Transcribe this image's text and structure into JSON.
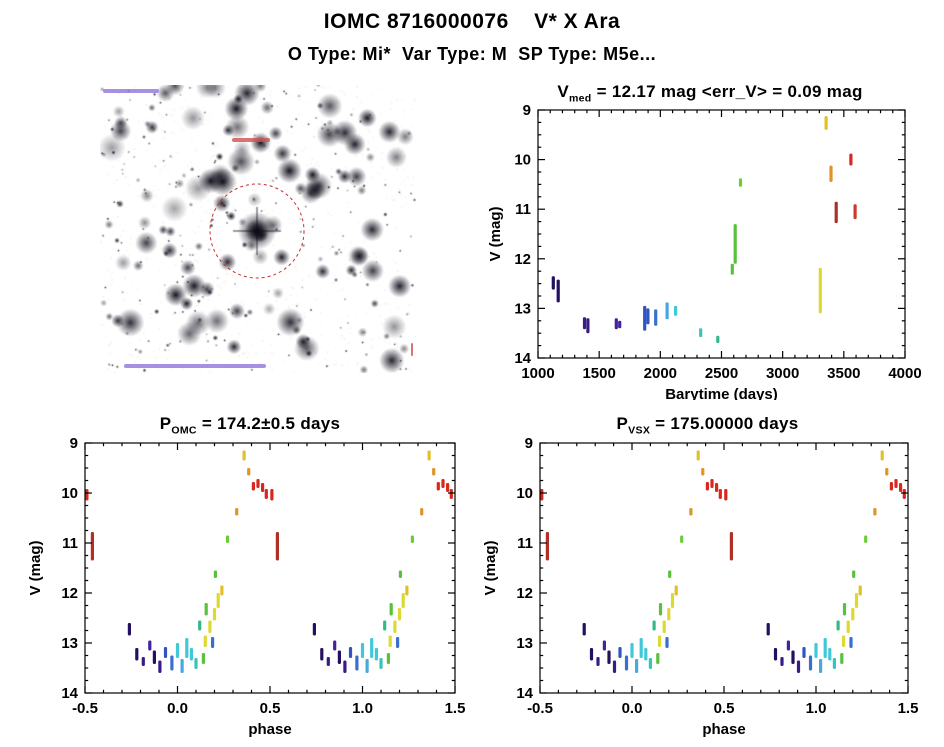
{
  "header": {
    "title": "IOMC 8716000076    V* X Ara",
    "subtitle": "O Type: Mi*  Var Type: M  SP Type: M5e..."
  },
  "starfield": {
    "marker_circle_color": "#c03030",
    "annotation_purple": "#8a6ad8",
    "annotation_red": "#d05050"
  },
  "chart_data": [
    {
      "id": "lightcurve",
      "type": "scatter",
      "title_pre": "V",
      "title_sub": "med",
      "title_post": " = 12.17 mag <err_V> = 0.09 mag",
      "xlabel": "Barytime (days)",
      "ylabel": "V (mag)",
      "xlim": [
        1000,
        4000
      ],
      "ylim": [
        9,
        14
      ],
      "y_inverted": true,
      "grid": false,
      "xticks": [
        1000,
        1500,
        2000,
        2500,
        3000,
        3500,
        4000
      ],
      "xtick_labels": [
        "1000",
        "1500",
        "2000",
        "2500",
        "3000",
        "3500",
        "4000"
      ],
      "yticks": [
        9,
        10,
        11,
        12,
        13,
        14
      ],
      "ytick_labels": [
        "9",
        "10",
        "11",
        "12",
        "13",
        "14"
      ],
      "xminor": 100,
      "yminor": 0.25,
      "clusters": [
        [
          1125,
          12.35,
          12.62,
          "#241060"
        ],
        [
          1165,
          12.42,
          12.88,
          "#241060"
        ],
        [
          1380,
          13.18,
          13.42,
          "#381b86"
        ],
        [
          1408,
          13.2,
          13.5,
          "#381b86"
        ],
        [
          1640,
          13.2,
          13.42,
          "#44229e"
        ],
        [
          1668,
          13.25,
          13.4,
          "#44229e"
        ],
        [
          1872,
          12.95,
          13.45,
          "#3054c0"
        ],
        [
          1898,
          13.0,
          13.32,
          "#3054c0"
        ],
        [
          1962,
          13.02,
          13.35,
          "#3a6fd0"
        ],
        [
          2055,
          12.88,
          13.22,
          "#49a8dd"
        ],
        [
          2125,
          12.95,
          13.15,
          "#40c8d8"
        ],
        [
          2330,
          13.4,
          13.58,
          "#38c4bc"
        ],
        [
          2470,
          13.55,
          13.7,
          "#34b88a"
        ],
        [
          2588,
          12.1,
          12.32,
          "#58c23c"
        ],
        [
          2612,
          11.3,
          12.1,
          "#58c23c"
        ],
        [
          2655,
          10.38,
          10.55,
          "#6ccc38"
        ],
        [
          3308,
          12.18,
          13.1,
          "#ded832"
        ],
        [
          3355,
          9.12,
          9.4,
          "#e2c028"
        ],
        [
          3395,
          10.12,
          10.45,
          "#e09428"
        ],
        [
          3438,
          10.85,
          11.28,
          "#a8322a"
        ],
        [
          3558,
          9.88,
          10.12,
          "#d8281e"
        ],
        [
          3592,
          10.9,
          11.2,
          "#cc3a2e"
        ]
      ]
    },
    {
      "id": "phase_omc",
      "type": "scatter",
      "title_pre": "P",
      "title_sub": "OMC",
      "title_post": " = 174.2±0.5 days",
      "xlabel": "phase",
      "ylabel": "V (mag)",
      "xlim": [
        -0.5,
        1.5
      ],
      "ylim": [
        9,
        14
      ],
      "y_inverted": true,
      "grid": false,
      "xticks": [
        -0.5,
        0.0,
        0.5,
        1.0,
        1.5
      ],
      "xtick_labels": [
        "-0.5",
        "0.0",
        "0.5",
        "1.0",
        "1.5"
      ],
      "yticks": [
        9,
        10,
        11,
        12,
        13,
        14
      ],
      "ytick_labels": [
        "9",
        "10",
        "11",
        "12",
        "13",
        "14"
      ],
      "xminor": 0.1,
      "yminor": 0.25,
      "repeat": 1,
      "clusters_ref": "phase_clusters"
    },
    {
      "id": "phase_vsx",
      "type": "scatter",
      "title_pre": "P",
      "title_sub": "VSX",
      "title_post": " = 175.00000 days",
      "xlabel": "phase",
      "ylabel": "V (mag)",
      "xlim": [
        -0.5,
        1.5
      ],
      "ylim": [
        9,
        14
      ],
      "y_inverted": true,
      "grid": false,
      "xticks": [
        -0.5,
        0.0,
        0.5,
        1.0,
        1.5
      ],
      "xtick_labels": [
        "-0.5",
        "0.0",
        "0.5",
        "1.0",
        "1.5"
      ],
      "yticks": [
        9,
        10,
        11,
        12,
        13,
        14
      ],
      "ytick_labels": [
        "9",
        "10",
        "11",
        "12",
        "13",
        "14"
      ],
      "xminor": 0.1,
      "yminor": 0.25,
      "repeat": 1,
      "clusters_ref": "phase_clusters"
    }
  ],
  "phase_clusters": [
    [
      -0.49,
      9.92,
      10.15,
      "#d8281e"
    ],
    [
      -0.46,
      10.78,
      11.35,
      "#b03028"
    ],
    [
      -0.26,
      12.6,
      12.85,
      "#241060"
    ],
    [
      -0.22,
      13.1,
      13.35,
      "#241060"
    ],
    [
      -0.185,
      13.28,
      13.46,
      "#381b86"
    ],
    [
      -0.15,
      12.95,
      13.15,
      "#44229e"
    ],
    [
      -0.125,
      13.15,
      13.42,
      "#241060"
    ],
    [
      -0.095,
      13.35,
      13.6,
      "#381b86"
    ],
    [
      -0.065,
      13.08,
      13.3,
      "#3054c0"
    ],
    [
      -0.03,
      13.25,
      13.55,
      "#3a6fd0"
    ],
    [
      0.0,
      13.0,
      13.3,
      "#40c8d8"
    ],
    [
      0.025,
      13.32,
      13.6,
      "#49a8dd"
    ],
    [
      0.05,
      12.9,
      13.3,
      "#40c8d8"
    ],
    [
      0.075,
      13.1,
      13.35,
      "#40c8d8"
    ],
    [
      0.1,
      13.3,
      13.52,
      "#38c4bc"
    ],
    [
      0.12,
      12.55,
      12.75,
      "#34b88a"
    ],
    [
      0.14,
      13.2,
      13.42,
      "#58c23c"
    ],
    [
      0.155,
      12.2,
      12.45,
      "#58c23c"
    ],
    [
      0.15,
      12.85,
      13.08,
      "#ded832"
    ],
    [
      0.175,
      12.55,
      12.8,
      "#ded832"
    ],
    [
      0.19,
      12.88,
      13.1,
      "#3a6fd0"
    ],
    [
      0.2,
      12.3,
      12.55,
      "#ded832"
    ],
    [
      0.22,
      12.0,
      12.3,
      "#ded832"
    ],
    [
      0.24,
      11.85,
      12.05,
      "#e2c028"
    ],
    [
      0.205,
      11.55,
      11.7,
      "#58c23c"
    ],
    [
      0.27,
      10.85,
      11.0,
      "#6ccc38"
    ],
    [
      0.32,
      10.3,
      10.45,
      "#e09428"
    ],
    [
      0.36,
      9.15,
      9.35,
      "#e2c028"
    ],
    [
      0.385,
      9.5,
      9.65,
      "#e09428"
    ],
    [
      0.41,
      9.78,
      9.95,
      "#d8281e"
    ],
    [
      0.435,
      9.72,
      9.9,
      "#d8281e"
    ],
    [
      0.46,
      9.8,
      9.98,
      "#d8281e"
    ],
    [
      0.48,
      9.92,
      10.12,
      "#d8281e"
    ]
  ]
}
